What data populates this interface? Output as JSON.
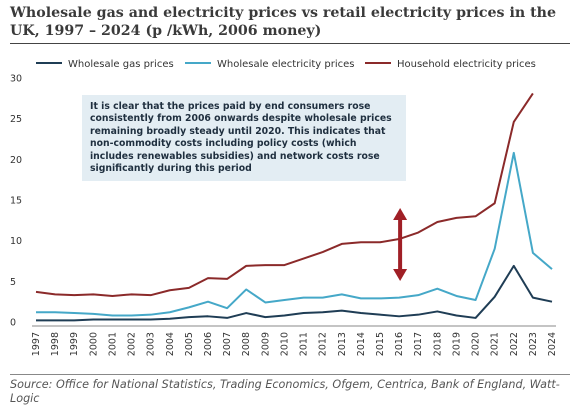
{
  "title": "Wholesale gas and electricity prices vs retail electricity prices in the UK, 1997 – 2024 (p /kWh, 2006 money)",
  "annotation": "It is clear that the prices paid by end consumers rose consistently from 2006 onwards despite wholesale prices remaining broadly steady until 2020. This indicates that non-commodity costs including policy costs (which includes renewables subsidies) and network costs rose significantly during this period",
  "source": "Source: Office for National Statistics, Trading Economics, Ofgem, Centrica, Bank of England, Watt-Logic",
  "colors": {
    "gas": "#1f3d55",
    "electricity": "#45a8c8",
    "household": "#8b2a2a",
    "arrow": "#a01f26",
    "grid": "#dddddd"
  },
  "chart_data": {
    "type": "line",
    "title": "Wholesale gas and electricity prices vs retail electricity prices in the UK, 1997 – 2024 (p /kWh, 2006 money)",
    "xlabel": "",
    "ylabel": "",
    "ylim": [
      0,
      30
    ],
    "yticks": [
      0,
      5,
      10,
      15,
      20,
      25,
      30
    ],
    "grid": false,
    "legend_position": "top",
    "x": [
      "1997",
      "1998",
      "1999",
      "2000",
      "2001",
      "2002",
      "2003",
      "2004",
      "2005",
      "2006",
      "2007",
      "2008",
      "2009",
      "2010",
      "2011",
      "2012",
      "2013",
      "2014",
      "2015",
      "2016",
      "2017",
      "2018",
      "2019",
      "2020",
      "2021",
      "2022",
      "2023",
      "2024"
    ],
    "series": [
      {
        "name": "Wholesale gas prices",
        "color": "#1f3d55",
        "values": [
          0.2,
          0.2,
          0.2,
          0.3,
          0.3,
          0.3,
          0.3,
          0.4,
          0.6,
          0.7,
          0.5,
          1.1,
          0.6,
          0.8,
          1.1,
          1.2,
          1.4,
          1.1,
          0.9,
          0.7,
          0.9,
          1.3,
          0.8,
          0.5,
          3.1,
          6.9,
          3.0,
          2.5
        ]
      },
      {
        "name": "Wholesale electricity prices",
        "color": "#45a8c8",
        "values": [
          1.2,
          1.2,
          1.1,
          1.0,
          0.8,
          0.8,
          0.9,
          1.2,
          1.8,
          2.5,
          1.7,
          4.0,
          2.4,
          2.7,
          3.0,
          3.0,
          3.4,
          2.9,
          2.9,
          3.0,
          3.3,
          4.1,
          3.2,
          2.7,
          9.0,
          20.8,
          8.5,
          6.5
        ]
      },
      {
        "name": "Household electricity prices",
        "color": "#8b2a2a",
        "values": [
          3.7,
          3.4,
          3.3,
          3.4,
          3.2,
          3.4,
          3.3,
          3.9,
          4.2,
          5.4,
          5.3,
          6.9,
          7.0,
          7.0,
          7.8,
          8.6,
          9.6,
          9.8,
          9.8,
          10.2,
          11.0,
          12.3,
          12.8,
          13.0,
          14.6,
          24.6,
          28.1,
          null
        ]
      }
    ]
  }
}
